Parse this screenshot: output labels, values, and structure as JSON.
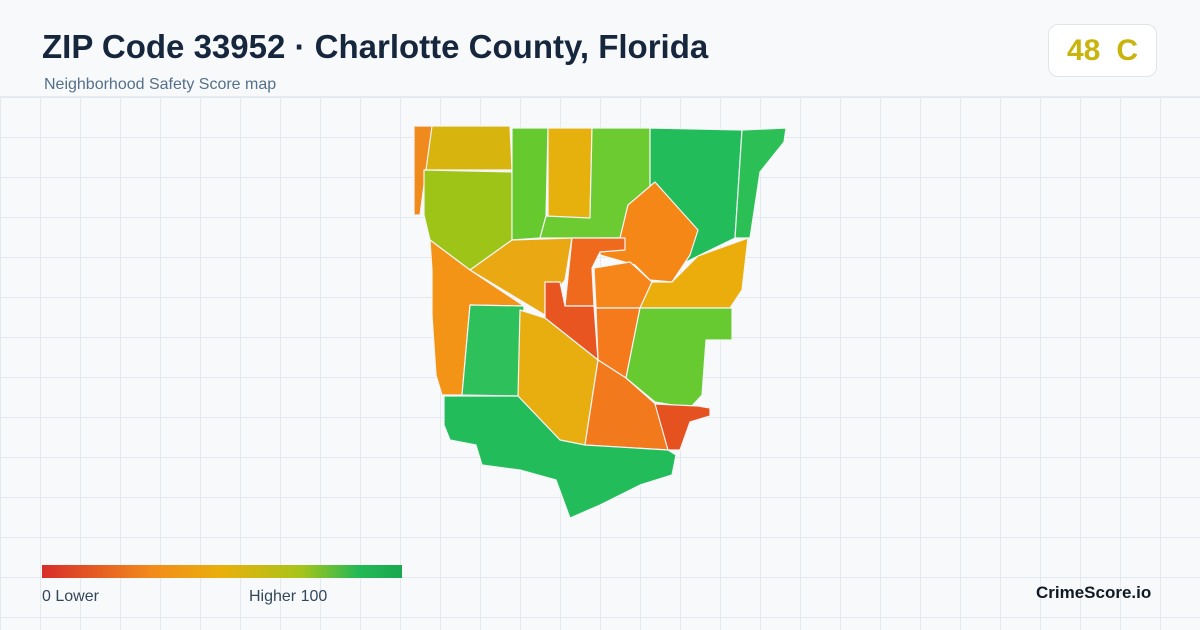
{
  "header": {
    "title": "ZIP Code 33952 · Charlotte County, Florida",
    "subtitle": "Neighborhood Safety Score map"
  },
  "score": {
    "value": "48",
    "grade": "C",
    "color": "#c8b40c"
  },
  "legend": {
    "low_label": "0  Lower",
    "high_label": "Higher  100",
    "min": 0,
    "max": 100,
    "colors": [
      "#d72d2a",
      "#f28a1c",
      "#e9b00c",
      "#a7c41a",
      "#23b956",
      "#1aa84e"
    ]
  },
  "brand": "CrimeScore.io",
  "map": {
    "regions": [
      {
        "id": "r1",
        "color": "#d8b40e"
      },
      {
        "id": "r2",
        "color": "#f08a1c"
      },
      {
        "id": "r3",
        "color": "#9fc418"
      },
      {
        "id": "r4",
        "color": "#66ca2e"
      },
      {
        "id": "r5",
        "color": "#e6b10d"
      },
      {
        "id": "r6",
        "color": "#6ccb30"
      },
      {
        "id": "r7",
        "color": "#22bd5a"
      },
      {
        "id": "r8",
        "color": "#2bbf56"
      },
      {
        "id": "r9",
        "color": "#eaa812"
      },
      {
        "id": "r10",
        "color": "#f58716"
      },
      {
        "id": "r11",
        "color": "#f06a1d"
      },
      {
        "id": "r12",
        "color": "#f6861a"
      },
      {
        "id": "r13",
        "color": "#ebad0c"
      },
      {
        "id": "r14",
        "color": "#f39416"
      },
      {
        "id": "r15",
        "color": "#2ec05a"
      },
      {
        "id": "r16",
        "color": "#e85521"
      },
      {
        "id": "r17",
        "color": "#e8ae10"
      },
      {
        "id": "r18",
        "color": "#f57a1b"
      },
      {
        "id": "r19",
        "color": "#66ca30"
      },
      {
        "id": "r20",
        "color": "#f37a1c"
      },
      {
        "id": "r21",
        "color": "#e65120"
      },
      {
        "id": "r22",
        "color": "#22bd5a"
      }
    ]
  }
}
